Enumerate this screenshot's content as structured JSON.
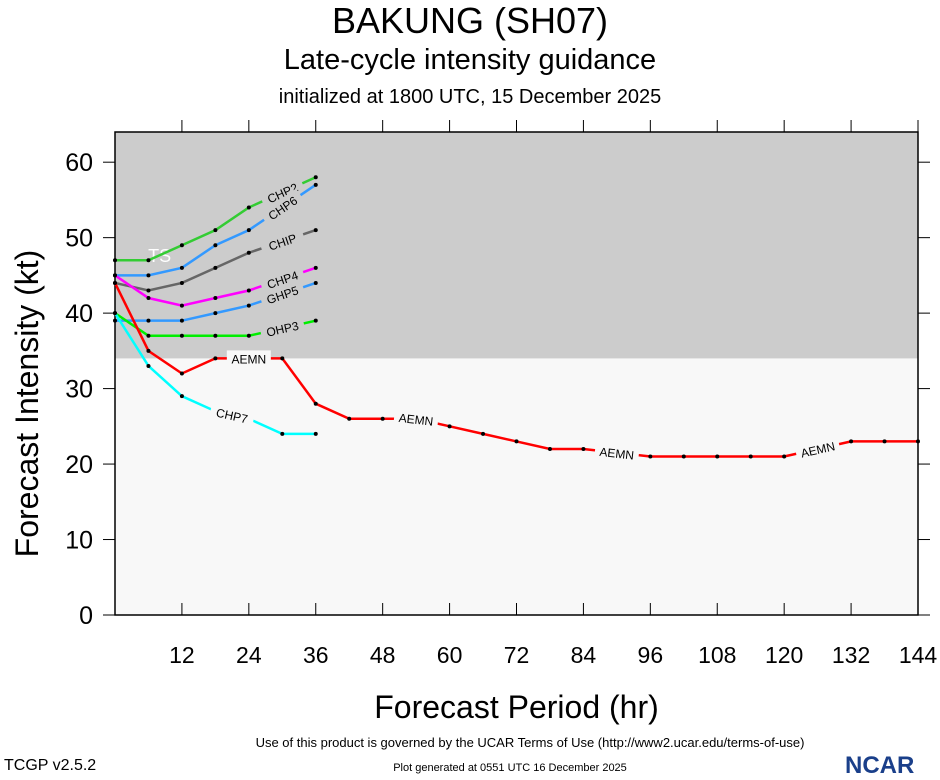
{
  "header": {
    "title": "BAKUNG (SH07)",
    "subtitle": "Late-cycle intensity guidance",
    "init": "initialized at 1800 UTC, 15 December 2025"
  },
  "footer": {
    "terms": "Use of this product is governed by the UCAR Terms of Use (http://www2.ucar.edu/terms-of-use)",
    "generated": "Plot generated at 0551 UTC   16 December 2025",
    "version": "TCGP v2.5.2",
    "logo": "NCAR"
  },
  "chart_data": {
    "type": "line",
    "xlabel": "Forecast Period (hr)",
    "ylabel": "Forecast Intensity (kt)",
    "xlim": [
      0,
      144
    ],
    "ylim": [
      0,
      64
    ],
    "xticks": [
      12,
      24,
      36,
      48,
      60,
      72,
      84,
      96,
      108,
      120,
      132,
      144
    ],
    "yticks": [
      0,
      10,
      20,
      30,
      40,
      50,
      60
    ],
    "bands": [
      {
        "label": "TS",
        "from": 34,
        "to": 64,
        "color": "#cccccc"
      }
    ],
    "series": [
      {
        "name": "CHP2",
        "color": "#33cc33",
        "x": [
          0,
          6,
          12,
          18,
          24,
          30,
          36
        ],
        "y": [
          47,
          47,
          49,
          51,
          54,
          56,
          58
        ],
        "label_at": 30
      },
      {
        "name": "CHP6",
        "color": "#3399ff",
        "x": [
          0,
          6,
          12,
          18,
          24,
          30,
          36
        ],
        "y": [
          45,
          45,
          46,
          49,
          51,
          54,
          57
        ],
        "label_at": 30
      },
      {
        "name": "CHIP",
        "color": "#666666",
        "x": [
          0,
          6,
          12,
          18,
          24,
          30,
          36
        ],
        "y": [
          44,
          43,
          44,
          46,
          48,
          49.5,
          51
        ],
        "label_at": 30
      },
      {
        "name": "CHP4",
        "color": "#ff00ff",
        "x": [
          0,
          6,
          12,
          18,
          24,
          30,
          36
        ],
        "y": [
          45,
          42,
          41,
          42,
          43,
          44.5,
          46
        ],
        "label_at": 30
      },
      {
        "name": "GHP5",
        "color": "#3399ff",
        "x": [
          0,
          6,
          12,
          18,
          24,
          30,
          36
        ],
        "y": [
          39,
          39,
          39,
          40,
          41,
          42.5,
          44
        ],
        "label_at": 30
      },
      {
        "name": "OHP3",
        "color": "#00ee00",
        "x": [
          0,
          6,
          12,
          18,
          24,
          30,
          36
        ],
        "y": [
          40,
          37,
          37,
          37,
          37,
          38,
          39
        ],
        "label_at": 30
      },
      {
        "name": "CHP7",
        "color": "#00ffff",
        "x": [
          0,
          6,
          12,
          18,
          24,
          30,
          36
        ],
        "y": [
          40,
          33,
          29,
          27,
          26,
          24,
          24
        ],
        "label_at": 21
      },
      {
        "name": "AEMN",
        "color": "#ff0000",
        "x": [
          0,
          6,
          12,
          18,
          24,
          30,
          36,
          42,
          48,
          54,
          60,
          66,
          72,
          78,
          84,
          90,
          96,
          102,
          108,
          114,
          120,
          126,
          132,
          138,
          144
        ],
        "y": [
          44,
          35,
          32,
          34,
          34,
          34,
          28,
          26,
          26,
          26,
          25,
          24,
          23,
          22,
          22,
          21.5,
          21,
          21,
          21,
          21,
          21,
          22,
          23,
          23,
          23
        ],
        "label_at": [
          24,
          54,
          90,
          126
        ]
      }
    ]
  }
}
